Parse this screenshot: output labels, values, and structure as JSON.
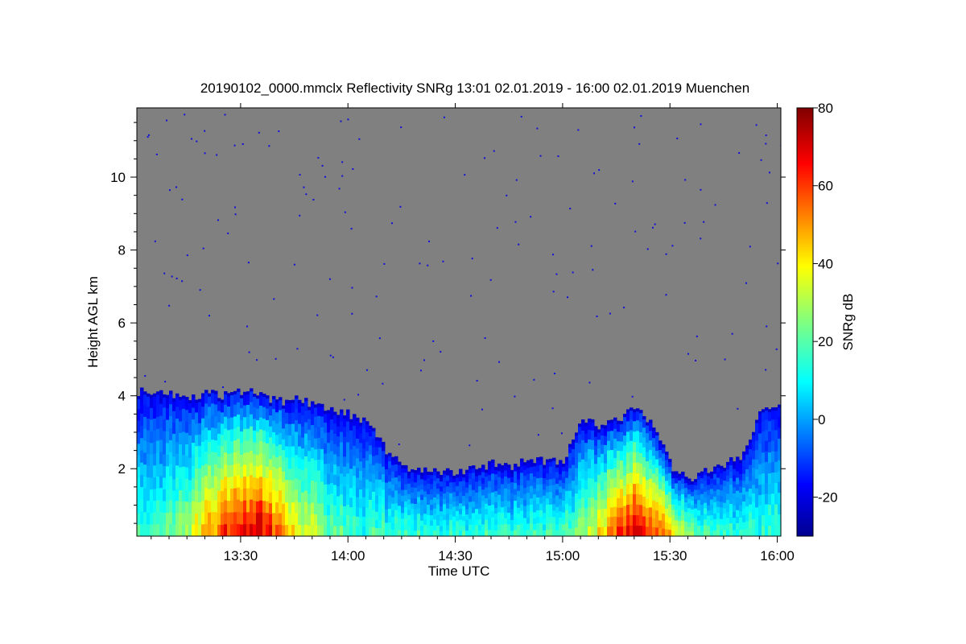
{
  "chart_data": {
    "type": "heatmap",
    "title": "20190102_0000.mmclx Reflectivity SNRg   13:01 02.01.2019 - 16:00 02.01.2019 Muenchen",
    "xlabel": "Time UTC",
    "ylabel": "Height AGL km",
    "colorbar_label": "SNRg dB",
    "x_ticks": [
      "13:30",
      "14:00",
      "14:30",
      "15:00",
      "15:30",
      "16:00"
    ],
    "x_tick_minutes": [
      90,
      120,
      150,
      180,
      210,
      240
    ],
    "xlim_minutes": [
      61,
      241
    ],
    "y_ticks": [
      2,
      4,
      6,
      8,
      10
    ],
    "ylim": [
      0.15,
      11.9
    ],
    "colorbar_ticks": [
      80,
      60,
      40,
      20,
      0,
      -20
    ],
    "colorbar_range": [
      -30,
      80
    ],
    "colormap": "jet",
    "no_signal_color": "#808080",
    "echo_top_km": [
      {
        "t": 61,
        "top": 4.05
      },
      {
        "t": 65,
        "top": 4.1
      },
      {
        "t": 70,
        "top": 4.0
      },
      {
        "t": 75,
        "top": 3.9
      },
      {
        "t": 80,
        "top": 4.05
      },
      {
        "t": 85,
        "top": 3.95
      },
      {
        "t": 90,
        "top": 4.1
      },
      {
        "t": 95,
        "top": 4.0
      },
      {
        "t": 100,
        "top": 3.8
      },
      {
        "t": 105,
        "top": 3.85
      },
      {
        "t": 110,
        "top": 3.75
      },
      {
        "t": 115,
        "top": 3.55
      },
      {
        "t": 120,
        "top": 3.45
      },
      {
        "t": 125,
        "top": 3.2
      },
      {
        "t": 130,
        "top": 2.5
      },
      {
        "t": 135,
        "top": 2.0
      },
      {
        "t": 140,
        "top": 1.95
      },
      {
        "t": 145,
        "top": 1.9
      },
      {
        "t": 150,
        "top": 1.85
      },
      {
        "t": 155,
        "top": 1.95
      },
      {
        "t": 160,
        "top": 2.1
      },
      {
        "t": 165,
        "top": 2.0
      },
      {
        "t": 170,
        "top": 2.2
      },
      {
        "t": 175,
        "top": 2.15
      },
      {
        "t": 180,
        "top": 2.2
      },
      {
        "t": 185,
        "top": 3.4
      },
      {
        "t": 190,
        "top": 3.1
      },
      {
        "t": 195,
        "top": 3.3
      },
      {
        "t": 200,
        "top": 3.6
      },
      {
        "t": 205,
        "top": 3.2
      },
      {
        "t": 210,
        "top": 2.0
      },
      {
        "t": 215,
        "top": 1.7
      },
      {
        "t": 220,
        "top": 1.9
      },
      {
        "t": 225,
        "top": 2.1
      },
      {
        "t": 230,
        "top": 2.3
      },
      {
        "t": 235,
        "top": 3.5
      },
      {
        "t": 240,
        "top": 3.6
      }
    ]
  }
}
